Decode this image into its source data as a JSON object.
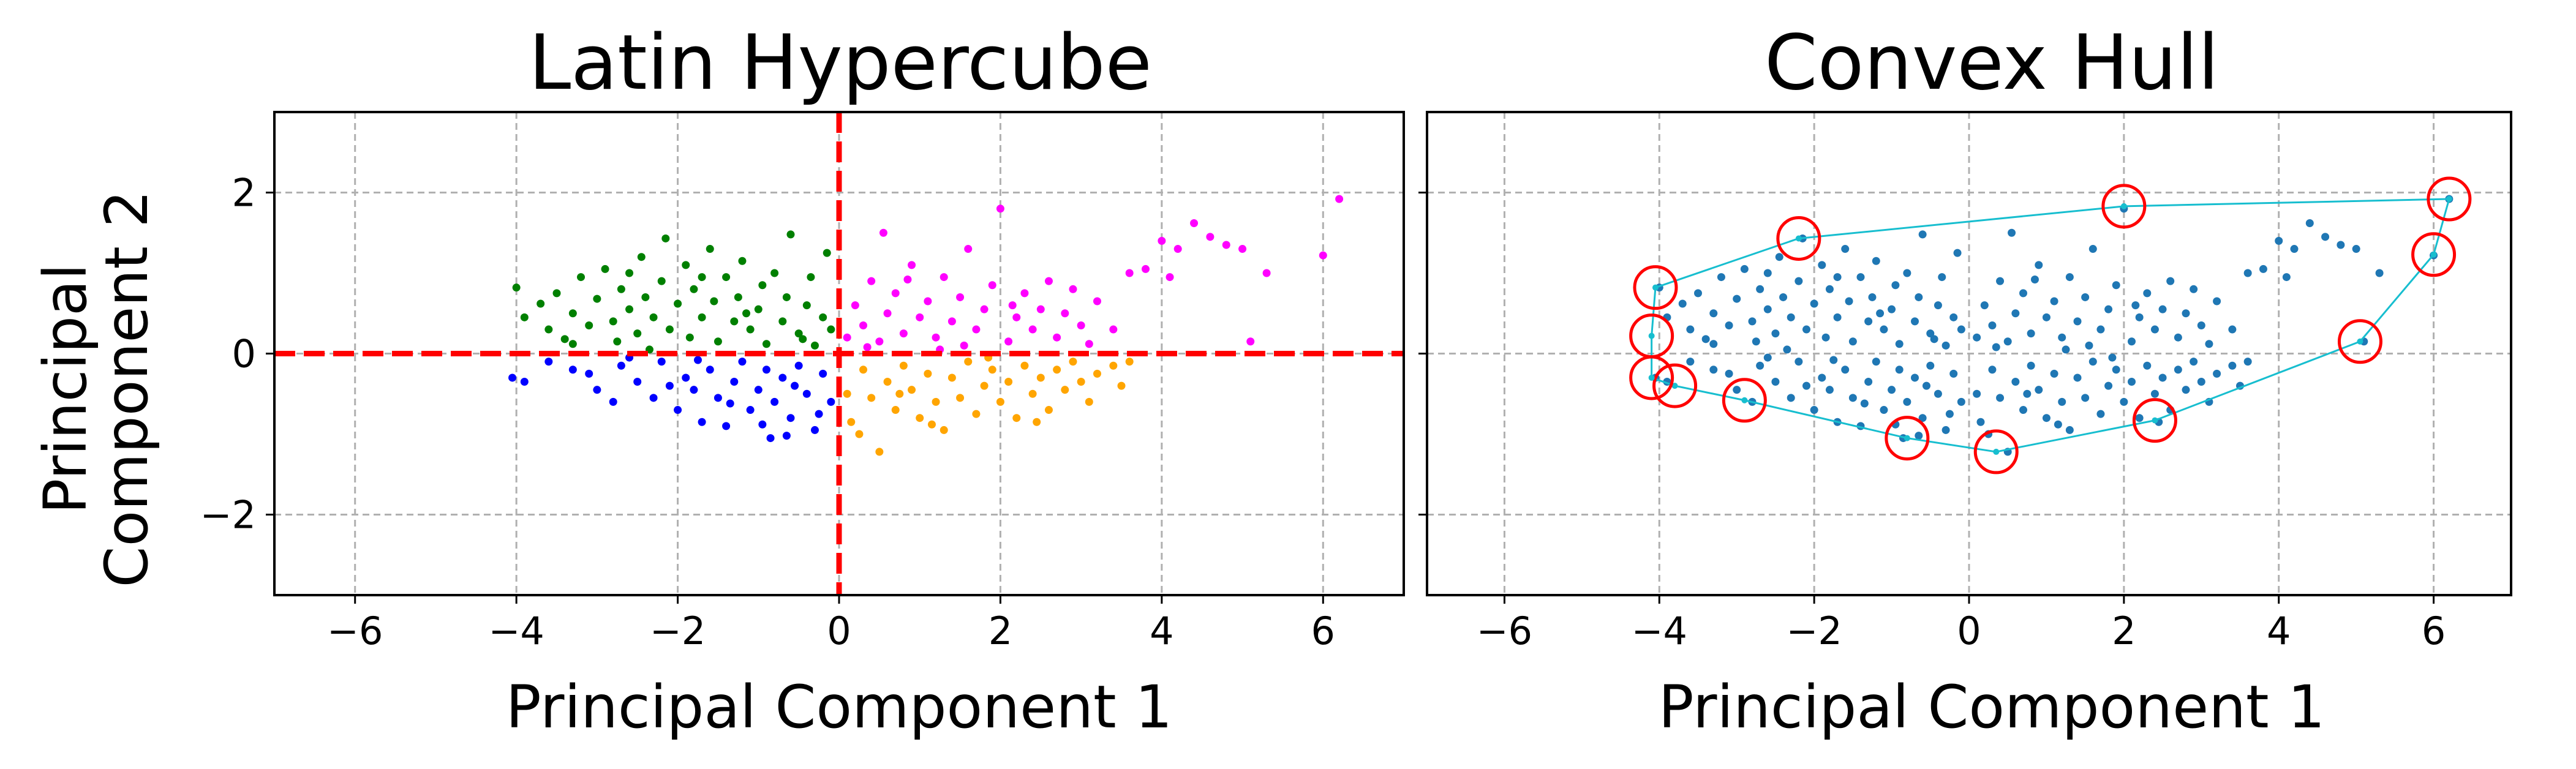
{
  "chart_data": [
    {
      "type": "scatter",
      "title": "Latin Hypercube",
      "xlabel": "Principal Component 1",
      "ylabel": "Principal\nComponent 2",
      "xlim": [
        -7,
        7
      ],
      "ylim": [
        -3,
        3
      ],
      "xticks": [
        "−6",
        "−4",
        "−2",
        "0",
        "2",
        "4",
        "6"
      ],
      "yticks": [
        "−2",
        "0",
        "2"
      ],
      "grid": true,
      "reference_lines": {
        "x": 0,
        "y": 0,
        "color": "#ff0000",
        "style": "dashed"
      },
      "series": [
        {
          "quadrant": "x<0, y>0",
          "color": "#008000",
          "points": [
            [
              -4.0,
              0.82
            ],
            [
              -3.9,
              0.45
            ],
            [
              -3.7,
              0.62
            ],
            [
              -3.6,
              0.3
            ],
            [
              -3.5,
              0.75
            ],
            [
              -3.4,
              0.18
            ],
            [
              -3.3,
              0.5
            ],
            [
              -3.2,
              0.95
            ],
            [
              -3.1,
              0.35
            ],
            [
              -3.0,
              0.68
            ],
            [
              -2.9,
              1.05
            ],
            [
              -2.8,
              0.4
            ],
            [
              -2.75,
              0.15
            ],
            [
              -2.7,
              0.8
            ],
            [
              -2.6,
              0.55
            ],
            [
              -2.5,
              0.25
            ],
            [
              -2.45,
              1.2
            ],
            [
              -2.4,
              0.7
            ],
            [
              -2.3,
              0.45
            ],
            [
              -2.2,
              0.9
            ],
            [
              -2.15,
              1.43
            ],
            [
              -2.1,
              0.3
            ],
            [
              -2.0,
              0.62
            ],
            [
              -1.9,
              1.1
            ],
            [
              -1.85,
              0.2
            ],
            [
              -1.8,
              0.8
            ],
            [
              -1.7,
              0.45
            ],
            [
              -1.6,
              1.3
            ],
            [
              -1.55,
              0.65
            ],
            [
              -1.5,
              0.15
            ],
            [
              -1.4,
              0.95
            ],
            [
              -1.3,
              0.4
            ],
            [
              -1.25,
              0.7
            ],
            [
              -1.2,
              1.15
            ],
            [
              -1.1,
              0.3
            ],
            [
              -1.0,
              0.55
            ],
            [
              -0.95,
              0.85
            ],
            [
              -0.9,
              0.12
            ],
            [
              -0.8,
              1.0
            ],
            [
              -0.7,
              0.4
            ],
            [
              -0.65,
              0.7
            ],
            [
              -0.6,
              1.48
            ],
            [
              -0.5,
              0.25
            ],
            [
              -0.4,
              0.6
            ],
            [
              -0.35,
              0.95
            ],
            [
              -0.3,
              0.1
            ],
            [
              -0.2,
              0.45
            ],
            [
              -0.15,
              1.25
            ],
            [
              -0.1,
              0.3
            ],
            [
              -2.6,
              1.0
            ],
            [
              -3.3,
              0.12
            ],
            [
              -1.7,
              0.95
            ],
            [
              -0.45,
              0.18
            ],
            [
              -2.35,
              0.05
            ],
            [
              -1.15,
              0.5
            ]
          ]
        },
        {
          "quadrant": "x<0, y<0",
          "color": "#0000ff",
          "points": [
            [
              -4.05,
              -0.3
            ],
            [
              -3.9,
              -0.35
            ],
            [
              -3.6,
              -0.1
            ],
            [
              -3.3,
              -0.2
            ],
            [
              -3.0,
              -0.45
            ],
            [
              -2.8,
              -0.6
            ],
            [
              -2.7,
              -0.15
            ],
            [
              -2.5,
              -0.35
            ],
            [
              -2.3,
              -0.55
            ],
            [
              -2.2,
              -0.1
            ],
            [
              -2.0,
              -0.7
            ],
            [
              -1.9,
              -0.3
            ],
            [
              -1.8,
              -0.45
            ],
            [
              -1.7,
              -0.85
            ],
            [
              -1.6,
              -0.2
            ],
            [
              -1.5,
              -0.55
            ],
            [
              -1.4,
              -0.9
            ],
            [
              -1.3,
              -0.35
            ],
            [
              -1.2,
              -0.1
            ],
            [
              -1.1,
              -0.7
            ],
            [
              -1.0,
              -0.45
            ],
            [
              -0.9,
              -0.2
            ],
            [
              -0.85,
              -1.05
            ],
            [
              -0.8,
              -0.6
            ],
            [
              -0.7,
              -0.3
            ],
            [
              -0.6,
              -0.8
            ],
            [
              -0.5,
              -0.15
            ],
            [
              -0.4,
              -0.5
            ],
            [
              -0.3,
              -0.95
            ],
            [
              -0.2,
              -0.25
            ],
            [
              -0.1,
              -0.6
            ],
            [
              -2.6,
              -0.05
            ],
            [
              -1.35,
              -0.62
            ],
            [
              -0.55,
              -0.4
            ],
            [
              -3.1,
              -0.25
            ],
            [
              -2.1,
              -0.4
            ],
            [
              -1.75,
              -0.08
            ],
            [
              -0.95,
              -0.88
            ],
            [
              -0.25,
              -0.75
            ],
            [
              -0.65,
              -1.02
            ]
          ]
        },
        {
          "quadrant": "x>0, y>0",
          "color": "#ff00ff",
          "points": [
            [
              0.1,
              0.2
            ],
            [
              0.2,
              0.6
            ],
            [
              0.3,
              0.35
            ],
            [
              0.4,
              0.9
            ],
            [
              0.5,
              0.15
            ],
            [
              0.55,
              1.5
            ],
            [
              0.6,
              0.5
            ],
            [
              0.7,
              0.75
            ],
            [
              0.8,
              0.25
            ],
            [
              0.9,
              1.1
            ],
            [
              1.0,
              0.45
            ],
            [
              1.1,
              0.65
            ],
            [
              1.2,
              0.2
            ],
            [
              1.3,
              0.95
            ],
            [
              1.4,
              0.4
            ],
            [
              1.5,
              0.7
            ],
            [
              1.6,
              1.3
            ],
            [
              1.7,
              0.3
            ],
            [
              1.8,
              0.55
            ],
            [
              1.9,
              0.85
            ],
            [
              2.0,
              1.8
            ],
            [
              2.1,
              0.15
            ],
            [
              2.2,
              0.45
            ],
            [
              2.3,
              0.75
            ],
            [
              2.4,
              0.3
            ],
            [
              2.5,
              0.55
            ],
            [
              2.6,
              0.9
            ],
            [
              2.7,
              0.2
            ],
            [
              2.8,
              0.5
            ],
            [
              2.9,
              0.8
            ],
            [
              3.0,
              0.35
            ],
            [
              3.2,
              0.65
            ],
            [
              3.4,
              0.3
            ],
            [
              3.6,
              1.0
            ],
            [
              3.8,
              1.05
            ],
            [
              4.0,
              1.4
            ],
            [
              4.1,
              0.95
            ],
            [
              4.2,
              1.3
            ],
            [
              4.4,
              1.62
            ],
            [
              4.6,
              1.45
            ],
            [
              4.8,
              1.35
            ],
            [
              5.0,
              1.3
            ],
            [
              5.1,
              0.15
            ],
            [
              5.3,
              1.0
            ],
            [
              6.0,
              1.22
            ],
            [
              6.2,
              1.92
            ],
            [
              0.35,
              0.08
            ],
            [
              1.25,
              0.05
            ],
            [
              2.15,
              0.6
            ],
            [
              0.85,
              0.92
            ],
            [
              3.1,
              0.12
            ],
            [
              1.55,
              0.1
            ]
          ]
        },
        {
          "quadrant": "x>0, y<0",
          "color": "#ffa500",
          "points": [
            [
              0.1,
              -0.5
            ],
            [
              0.15,
              -0.85
            ],
            [
              0.3,
              -0.2
            ],
            [
              0.4,
              -0.55
            ],
            [
              0.5,
              -1.22
            ],
            [
              0.6,
              -0.35
            ],
            [
              0.7,
              -0.7
            ],
            [
              0.8,
              -0.15
            ],
            [
              0.9,
              -0.45
            ],
            [
              1.0,
              -0.8
            ],
            [
              1.1,
              -0.25
            ],
            [
              1.2,
              -0.6
            ],
            [
              1.3,
              -0.95
            ],
            [
              1.4,
              -0.3
            ],
            [
              1.5,
              -0.55
            ],
            [
              1.6,
              -0.1
            ],
            [
              1.7,
              -0.75
            ],
            [
              1.8,
              -0.4
            ],
            [
              1.9,
              -0.2
            ],
            [
              2.0,
              -0.6
            ],
            [
              2.1,
              -0.35
            ],
            [
              2.2,
              -0.8
            ],
            [
              2.3,
              -0.15
            ],
            [
              2.4,
              -0.5
            ],
            [
              2.5,
              -0.3
            ],
            [
              2.6,
              -0.7
            ],
            [
              2.7,
              -0.2
            ],
            [
              2.8,
              -0.45
            ],
            [
              2.9,
              -0.1
            ],
            [
              3.0,
              -0.35
            ],
            [
              3.1,
              -0.6
            ],
            [
              3.2,
              -0.25
            ],
            [
              3.4,
              -0.15
            ],
            [
              3.5,
              -0.4
            ],
            [
              3.6,
              -0.1
            ],
            [
              0.25,
              -1.0
            ],
            [
              1.15,
              -0.88
            ],
            [
              2.45,
              -0.85
            ],
            [
              0.75,
              -0.5
            ],
            [
              1.85,
              -0.05
            ]
          ]
        }
      ]
    },
    {
      "type": "scatter",
      "title": "Convex Hull",
      "xlabel": "Principal Component 1",
      "ylabel": "",
      "xlim": [
        -7,
        7
      ],
      "ylim": [
        -3,
        3
      ],
      "xticks": [
        "−6",
        "−4",
        "−2",
        "0",
        "2",
        "4",
        "6"
      ],
      "yticks": [
        "−2",
        "0",
        "2"
      ],
      "grid": true,
      "colors": {
        "points": "#1f77b4",
        "hull": "#17becf",
        "vertex_circles": "#ff0000"
      },
      "hull_vertices": [
        [
          -4.05,
          0.82
        ],
        [
          -2.2,
          1.43
        ],
        [
          2.0,
          1.83
        ],
        [
          6.2,
          1.92
        ],
        [
          6.0,
          1.23
        ],
        [
          5.05,
          0.15
        ],
        [
          2.4,
          -0.83
        ],
        [
          0.35,
          -1.22
        ],
        [
          -0.8,
          -1.05
        ],
        [
          -2.9,
          -0.58
        ],
        [
          -3.8,
          -0.4
        ],
        [
          -4.1,
          -0.3
        ],
        [
          -4.1,
          0.22
        ]
      ]
    }
  ]
}
